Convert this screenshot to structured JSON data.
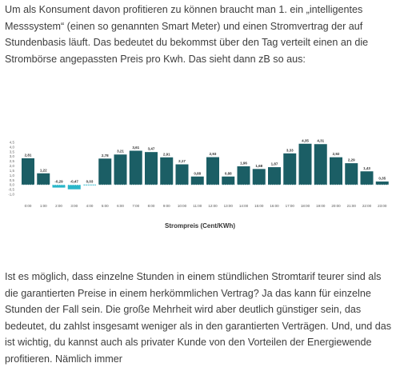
{
  "article": {
    "intro_text": "Um als Konsument davon profitieren zu können braucht man 1. ein „intelligentes Messsystem“ (einen so genannten Smart Meter) und einen Stromvertrag der auf Stundenbasis läuft. Das bedeutet du bekommst über den Tag verteilt einen an die Strombörse angepassten Preis pro Kwh. Das sieht dann zB so aus:",
    "body_text": "Ist es möglich, dass einzelne Stunden in einem stündlichen Stromtarif teurer sind als die garantierten Preise in einem herkömmlichen Vertrag? Ja das kann für einzelne Stunden der Fall sein. Die große Mehrheit wird aber deutlich günstiger sein, das bedeutet, du zahlst insgesamt weniger als in den garantierten Verträgen.  Und, und das ist wichtig, du kannst auch als privater Kunde von den Vorteilen der Energiewende profitieren. Nämlich immer"
  },
  "chart_data": {
    "type": "bar",
    "xlabel": "Strompreis (Cent/KWh)",
    "ylabel": "",
    "categories": [
      "0:00",
      "1:00",
      "2:00",
      "3:00",
      "4:00",
      "5:00",
      "6:00",
      "7:00",
      "8:00",
      "9:00",
      "10:00",
      "11:00",
      "12:00",
      "13:00",
      "14:00",
      "15:00",
      "16:00",
      "17:00",
      "18:00",
      "19:00",
      "20:00",
      "21:00",
      "22:00",
      "23:00"
    ],
    "values": [
      2.81,
      1.22,
      -0.29,
      -0.47,
      0.03,
      2.78,
      3.21,
      3.61,
      3.47,
      2.91,
      2.17,
      0.88,
      2.93,
      0.88,
      1.96,
      1.68,
      1.87,
      3.33,
      4.35,
      4.31,
      2.92,
      2.29,
      1.43,
      0.35
    ],
    "value_labels": [
      "2,81",
      "1,22",
      "-0,29",
      "-0,47",
      "0,03",
      "2,78",
      "3,21",
      "3,61",
      "3,47",
      "2,91",
      "2,17",
      "0,88",
      "2,93",
      "0,88",
      "1,96",
      "1,68",
      "1,87",
      "3,33",
      "4,35",
      "4,31",
      "2,92",
      "2,29",
      "1,43",
      "0,35"
    ],
    "highlight_categories": [
      "2:00",
      "3:00",
      "4:00"
    ],
    "y_ticks": [
      "4,5",
      "4,0",
      "3,5",
      "3,0",
      "2,5",
      "2,0",
      "1,5",
      "1,0",
      "0,5",
      "0,0",
      "-0,5",
      "-1,0"
    ],
    "ylim": [
      -1.0,
      4.5
    ],
    "zero_line": "dotted",
    "colors": {
      "bar": "#1b5e65",
      "highlight": "#29b6c9",
      "zero_line": "#ffffff"
    }
  }
}
